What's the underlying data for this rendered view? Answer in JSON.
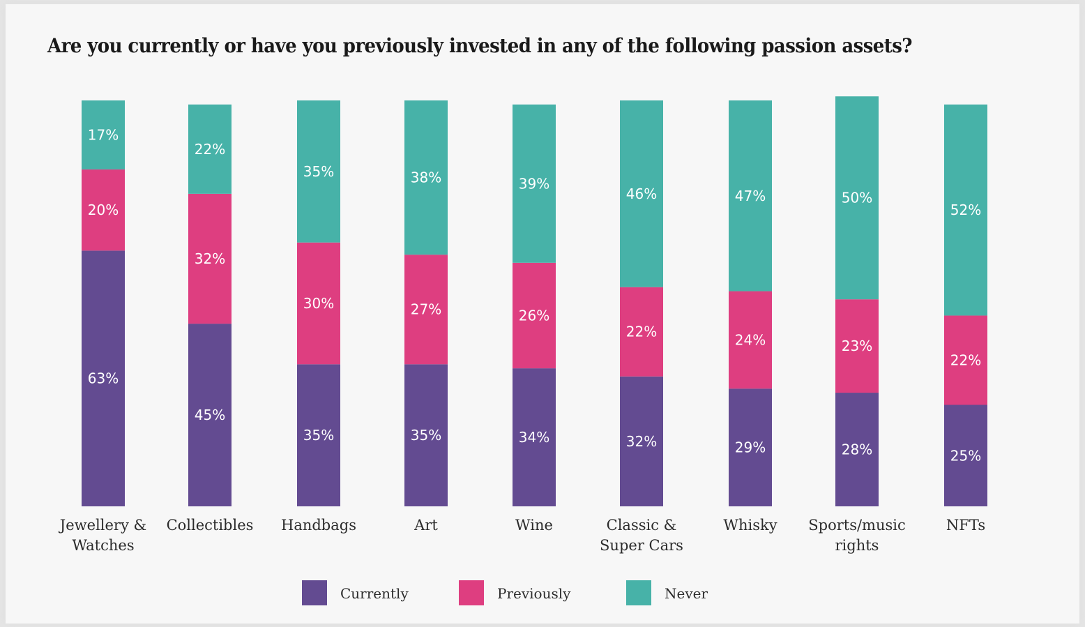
{
  "chart_data": {
    "type": "bar",
    "stacked": true,
    "title": "Are you currently or have you previously invested in any of the following passion assets?",
    "xlabel": "",
    "ylabel": "",
    "ylim": [
      0,
      100
    ],
    "grid": false,
    "legend_position": "bottom",
    "categories": [
      [
        "Jewellery &",
        "Watches"
      ],
      [
        "Collectibles"
      ],
      [
        "Handbags"
      ],
      [
        "Art"
      ],
      [
        "Wine"
      ],
      [
        "Classic &",
        "Super Cars"
      ],
      [
        "Whisky"
      ],
      [
        "Sports/music",
        "rights"
      ],
      [
        "NFTs"
      ]
    ],
    "series": [
      {
        "name": "Currently",
        "color": "#634b91",
        "values": [
          63,
          45,
          35,
          35,
          34,
          32,
          29,
          28,
          25
        ]
      },
      {
        "name": "Previously",
        "color": "#de3e80",
        "values": [
          20,
          32,
          30,
          27,
          26,
          22,
          24,
          23,
          22
        ]
      },
      {
        "name": "Never",
        "color": "#47b2a8",
        "values": [
          17,
          22,
          35,
          38,
          39,
          46,
          47,
          50,
          52
        ]
      }
    ],
    "label_color": "#ffffff",
    "text_color": "#2b2b2b"
  }
}
